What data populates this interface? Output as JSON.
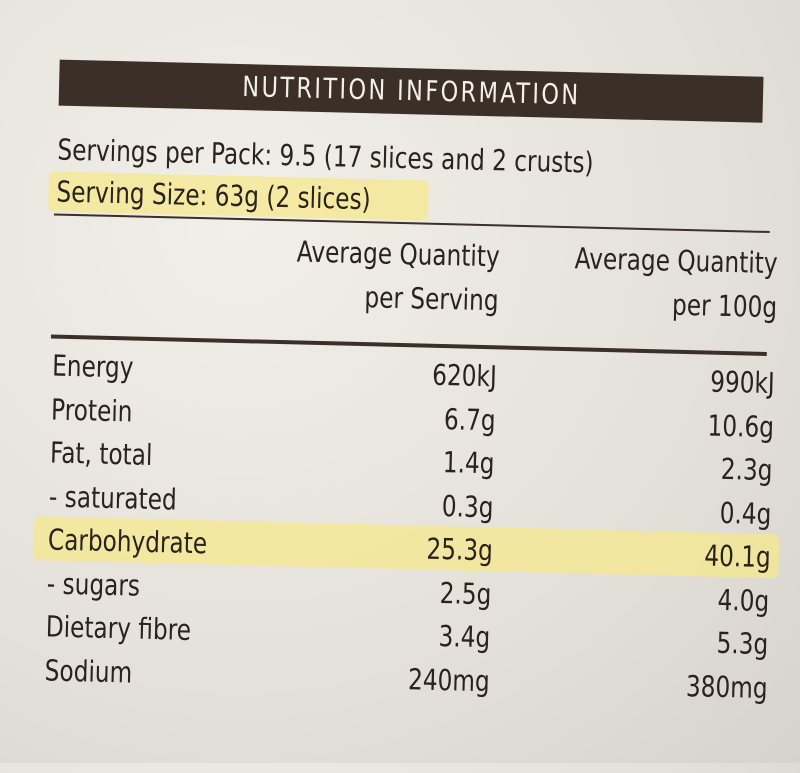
{
  "title": "NUTRITION INFORMATION",
  "servings_per_pack": "Servings per Pack: 9.5 (17 slices and 2 crusts)",
  "serving_size": "Serving Size: 63g (2 slices)",
  "table": {
    "header": [
      [
        "Average Quantity",
        "per Serving"
      ],
      [
        "Average Quantity",
        "per 100g"
      ]
    ],
    "rows": [
      [
        "Energy",
        "620kJ",
        "990kJ"
      ],
      [
        "Protein",
        "6.7g",
        "10.6g"
      ],
      [
        "Fat, total",
        "1.4g",
        "2.3g"
      ],
      [
        "- saturated",
        "0.3g",
        "0.4g"
      ],
      [
        "Carbohydrate",
        "25.3g",
        "40.1g"
      ],
      [
        "- sugars",
        "2.5g",
        "4.0g"
      ],
      [
        "Dietary fibre",
        "3.4g",
        "5.3g"
      ],
      [
        "Sodium",
        "240mg",
        "380mg"
      ]
    ]
  }
}
